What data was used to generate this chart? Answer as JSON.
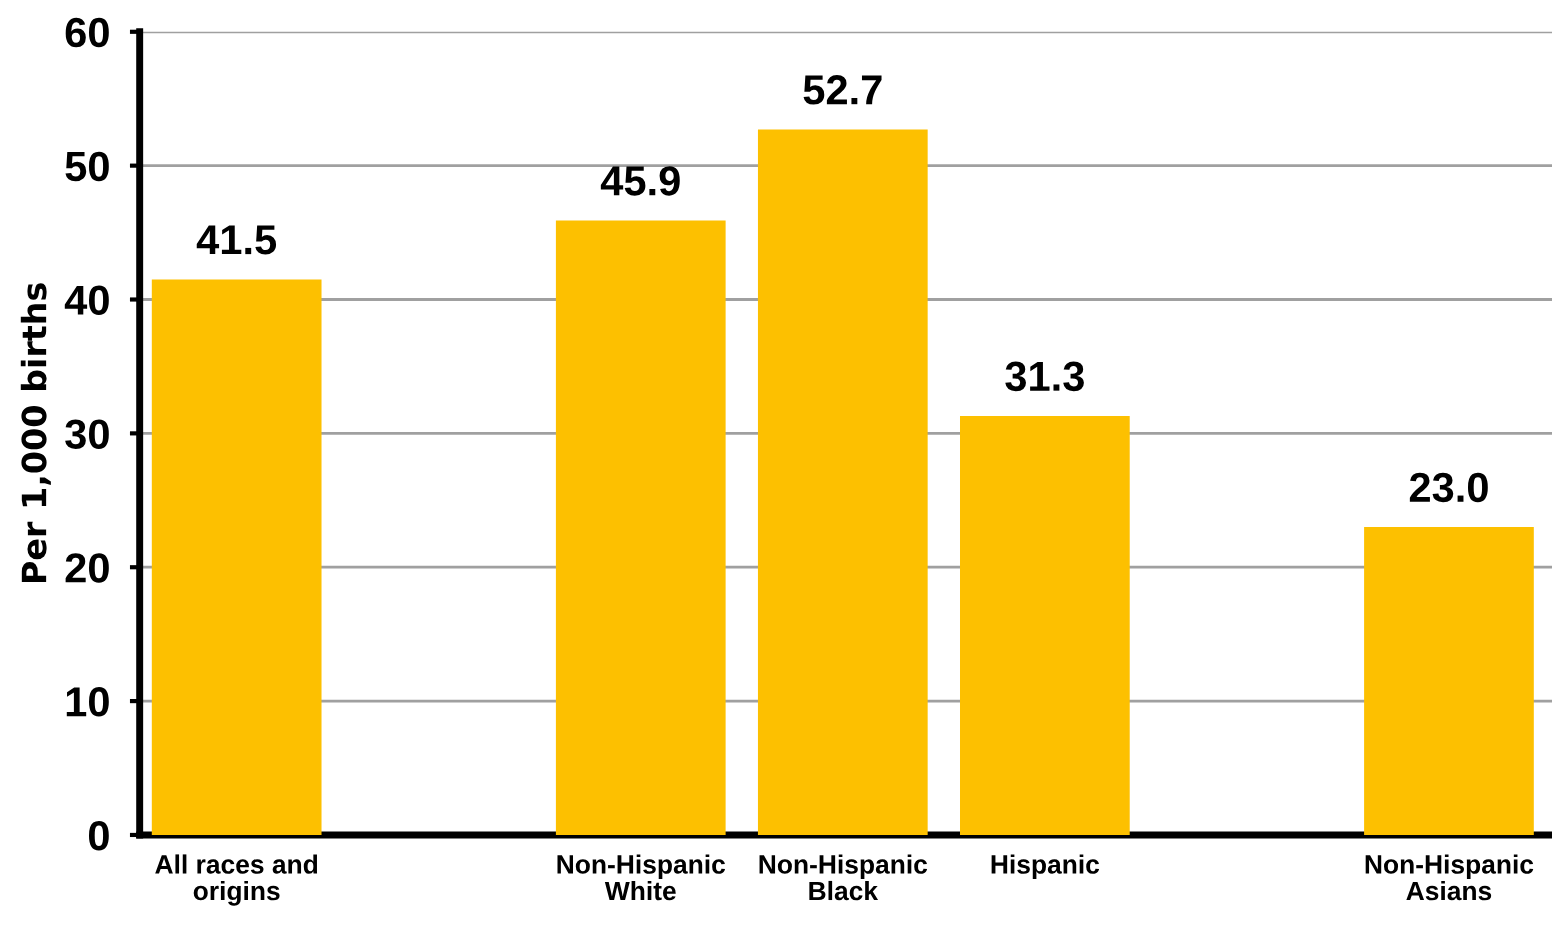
{
  "chart_data": {
    "type": "bar",
    "ylabel": "Per 1,000 births",
    "categories": [
      "All races and\norigins",
      null,
      "Non-Hispanic\nWhite",
      "Non-Hispanic\nBlack",
      "Hispanic",
      null,
      "Non-Hispanic\nAsians"
    ],
    "values": [
      41.5,
      null,
      45.9,
      52.7,
      31.3,
      null,
      23.0
    ],
    "value_labels": [
      "41.5",
      null,
      "45.9",
      "52.7",
      "31.3",
      null,
      "23.0"
    ],
    "color": "#fdc000",
    "ylim": [
      0,
      60
    ],
    "yticks": [
      0,
      10,
      20,
      30,
      40,
      50,
      60
    ],
    "grid": "y",
    "legend": false
  }
}
